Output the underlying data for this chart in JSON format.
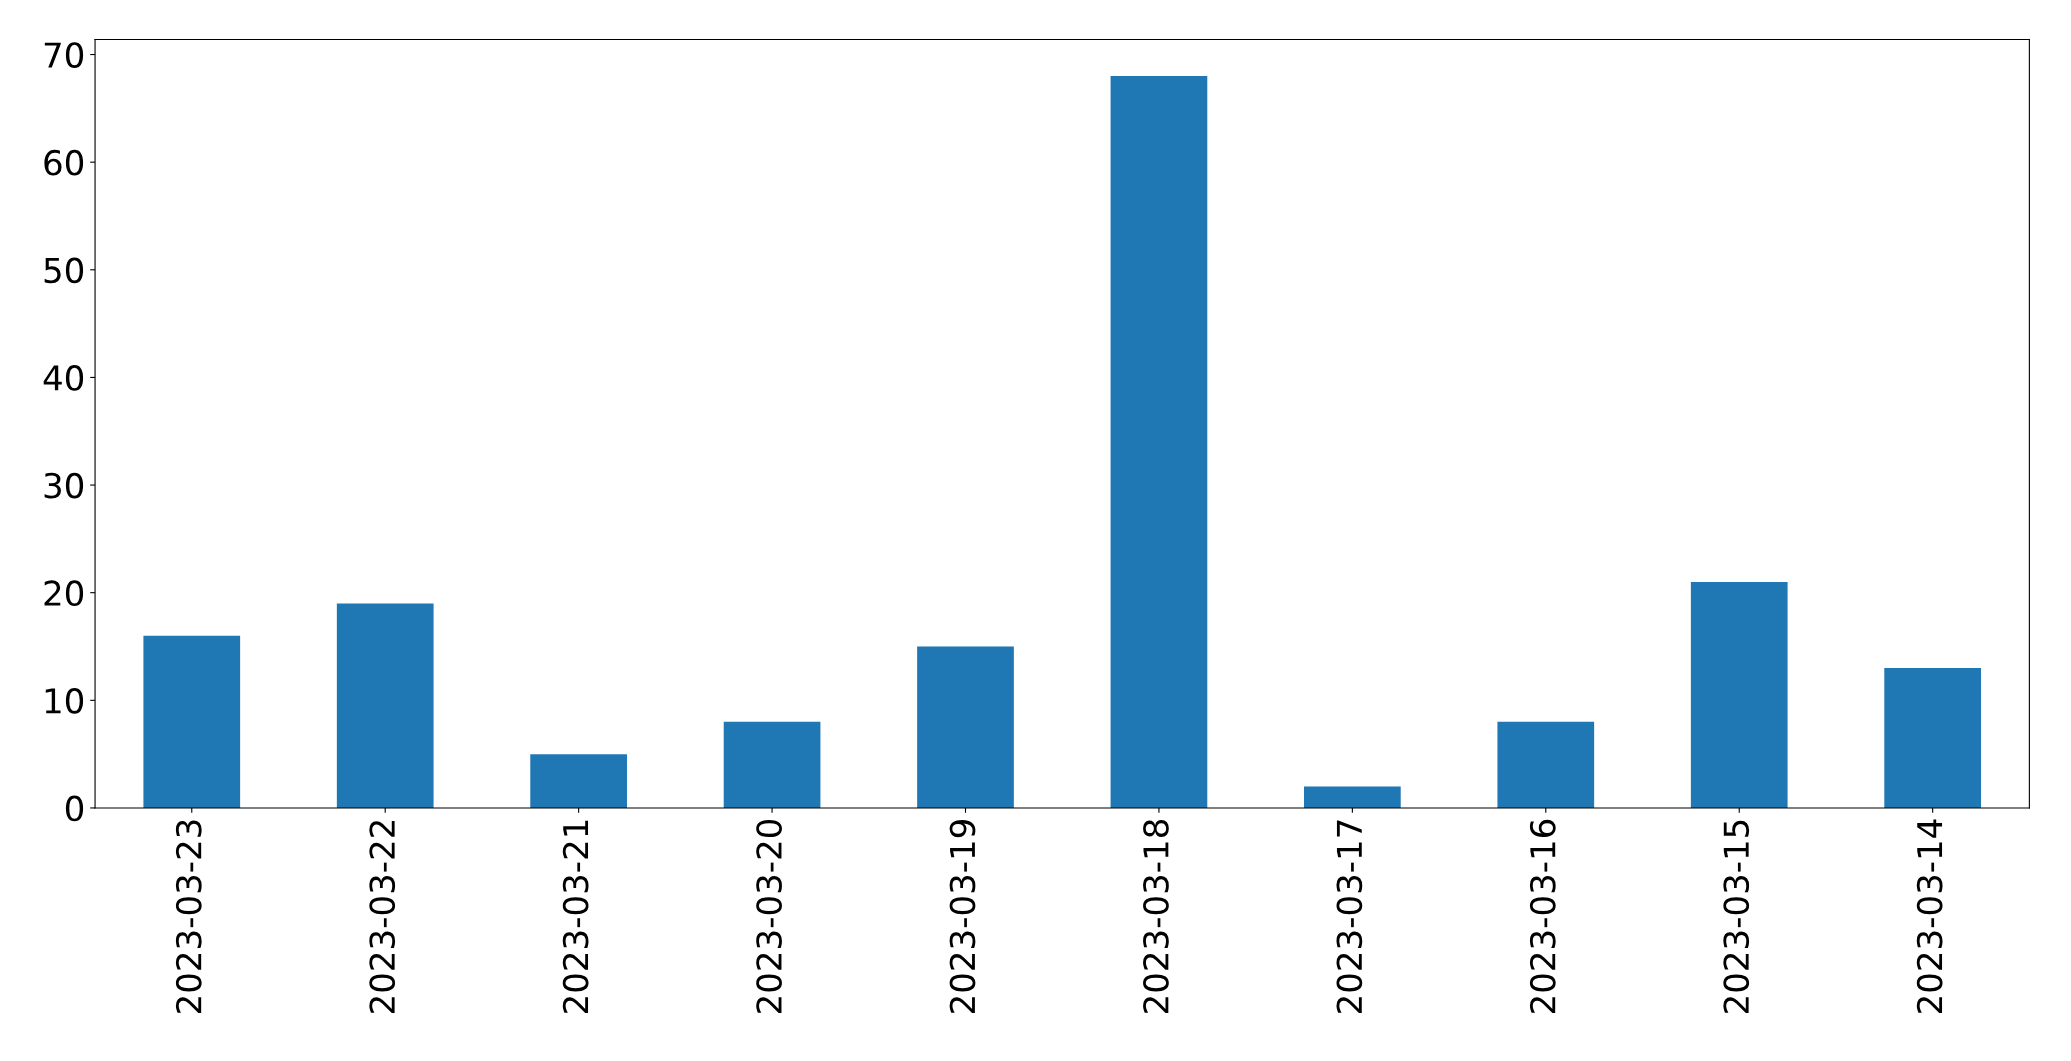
{
  "chart_data": {
    "type": "bar",
    "categories": [
      "2023-03-23",
      "2023-03-22",
      "2023-03-21",
      "2023-03-20",
      "2023-03-19",
      "2023-03-18",
      "2023-03-17",
      "2023-03-16",
      "2023-03-15",
      "2023-03-14"
    ],
    "values": [
      16,
      19,
      5,
      8,
      15,
      68,
      2,
      8,
      21,
      13
    ],
    "color": "#1f77b4",
    "ylim": [
      0,
      71.4
    ],
    "yticks": [
      0,
      10,
      20,
      30,
      40,
      50,
      60,
      70
    ],
    "grid": false
  }
}
